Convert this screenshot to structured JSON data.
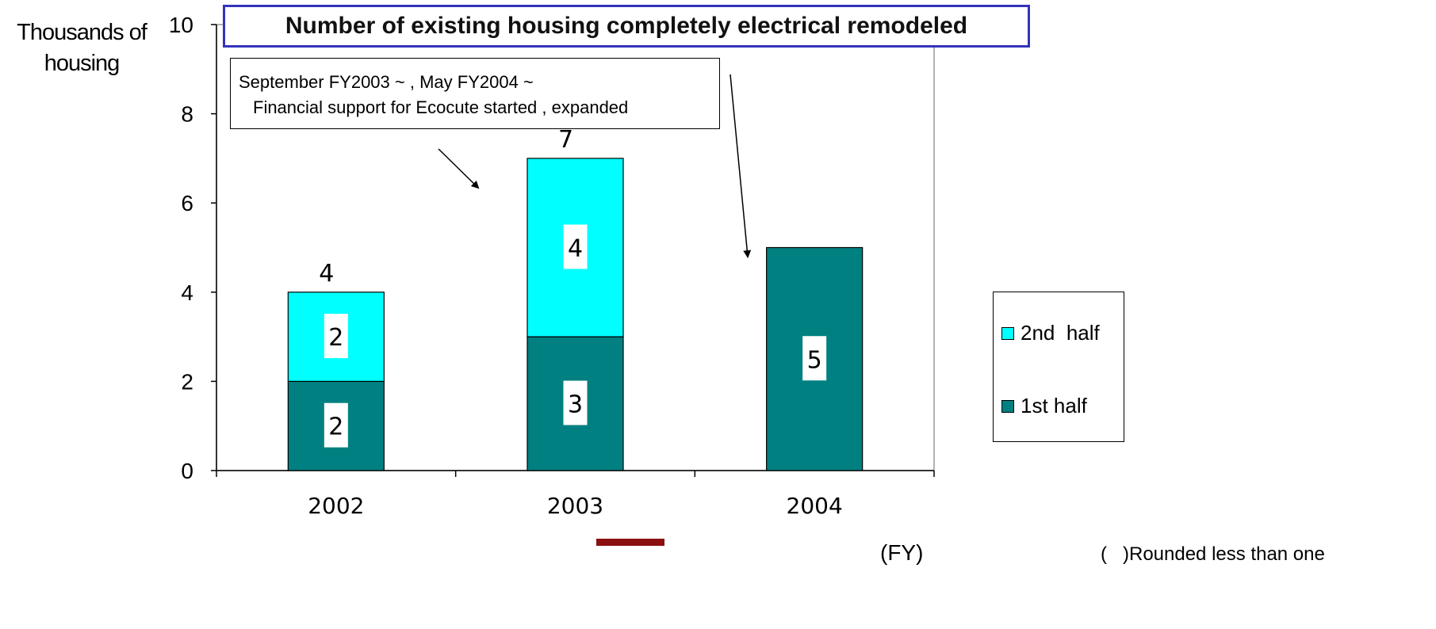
{
  "chart_data": {
    "type": "bar",
    "stacked": true,
    "title": "Number of existing housing completely electrical remodeled",
    "ylabel": "Thousands of housing",
    "xlabel": "(FY)",
    "categories": [
      "2002",
      "2003",
      "2004"
    ],
    "ylim": [
      0,
      10
    ],
    "yticks": [
      "0",
      "2",
      "4",
      "6",
      "8",
      "10"
    ],
    "grid": false,
    "legend_position": "right",
    "series": [
      {
        "name": "1st half",
        "values": [
          2,
          3,
          5
        ],
        "labels": [
          "2",
          "3",
          "5"
        ],
        "color": "#008080"
      },
      {
        "name": "2nd  half",
        "values": [
          2,
          4,
          0
        ],
        "labels": [
          "2",
          "4",
          ""
        ],
        "color": "#00ffff"
      }
    ],
    "totals": [
      "4",
      "7",
      ""
    ],
    "annotation": {
      "line1": "September FY2003 ~   , May FY2004 ~",
      "line2": "Financial support for Ecocute started , expanded"
    },
    "footnote": "(   )Rounded less than one"
  }
}
